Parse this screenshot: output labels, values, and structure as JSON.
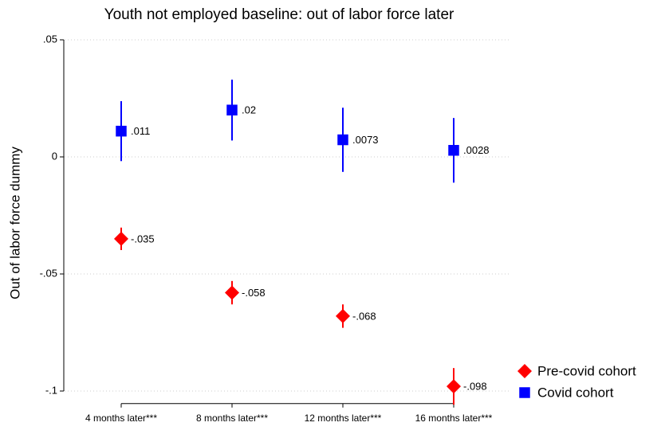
{
  "chart_data": {
    "type": "errorbar",
    "title": "Youth not employed baseline: out of labor force later",
    "y_label": "Out of labor force dummy",
    "categories": [
      "4 months later***",
      "8 months later***",
      "12 months later***",
      "16 months later***"
    ],
    "series": [
      {
        "name": "Pre-covid cohort",
        "color": "#ff0000",
        "marker": "diamond",
        "values": [
          -0.035,
          -0.058,
          -0.068,
          -0.098
        ],
        "value_labels": [
          "-.035",
          "-.058",
          "-.068",
          "-.098"
        ],
        "errors": [
          0.0048,
          0.005,
          0.005,
          0.0078
        ]
      },
      {
        "name": "Covid cohort",
        "color": "#0000ff",
        "marker": "square",
        "values": [
          0.011,
          0.02,
          0.0073,
          0.0028
        ],
        "value_labels": [
          ".011",
          ".02",
          ".0073",
          ".0028"
        ],
        "errors": [
          0.0128,
          0.013,
          0.0137,
          0.0138
        ]
      }
    ],
    "ylim": [
      -0.105,
      0.05
    ],
    "yticks": [
      {
        "value": -0.1,
        "label": "-.1"
      },
      {
        "value": -0.05,
        "label": "-.05"
      },
      0,
      {
        "value": 0.05,
        "label": ".05"
      }
    ],
    "grid": true,
    "legend": "right"
  }
}
